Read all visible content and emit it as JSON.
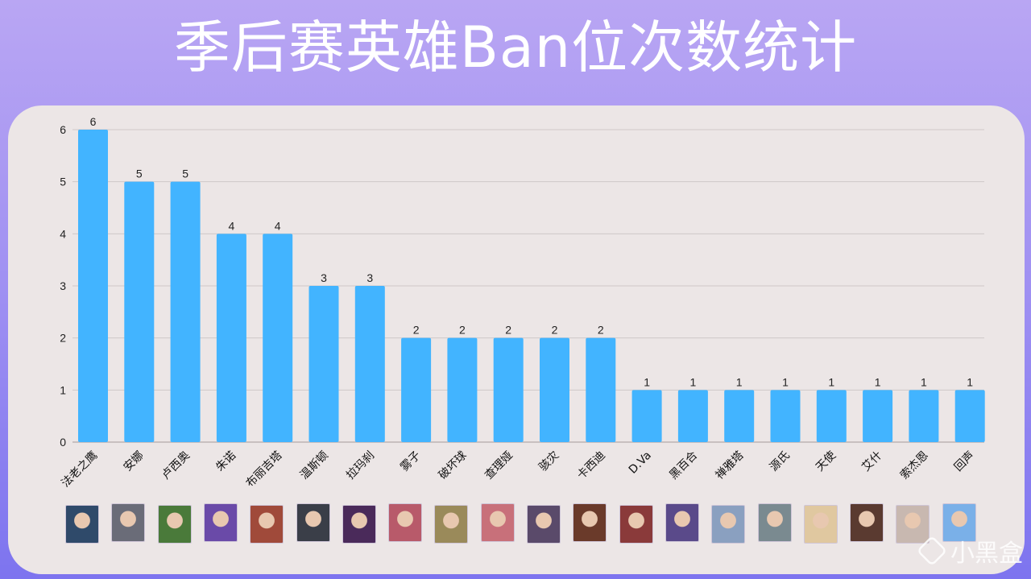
{
  "title": "季后赛英雄Ban位次数统计",
  "watermark": "小黑盒",
  "colors": {
    "bar": "#42b4ff",
    "card": "#ece6e6",
    "grid": "#cfc8c8"
  },
  "chart_data": {
    "type": "bar",
    "title": "季后赛英雄Ban位次数统计",
    "categories": [
      "法老之鹰",
      "安娜",
      "卢西奥",
      "朱诺",
      "布丽吉塔",
      "温斯顿",
      "拉玛刹",
      "雾子",
      "破坏球",
      "查理娅",
      "骇灾",
      "卡西迪",
      "D.Va",
      "黑百合",
      "禅雅塔",
      "源氏",
      "天使",
      "艾什",
      "索杰恩",
      "回声"
    ],
    "values": [
      6,
      5,
      5,
      4,
      4,
      3,
      3,
      2,
      2,
      2,
      2,
      2,
      1,
      1,
      1,
      1,
      1,
      1,
      1,
      1
    ],
    "ylim": [
      0,
      6
    ],
    "yticks": [
      0,
      1,
      2,
      3,
      4,
      5,
      6
    ],
    "grid": true,
    "data_labels": true,
    "xlabel": "",
    "ylabel": ""
  },
  "portraits": [
    {
      "hero": "法老之鹰",
      "color": "#2f4a6a"
    },
    {
      "hero": "安娜",
      "color": "#6a6c78"
    },
    {
      "hero": "卢西奥",
      "color": "#4a7a3a"
    },
    {
      "hero": "朱诺",
      "color": "#6a4aa8"
    },
    {
      "hero": "布丽吉塔",
      "color": "#a04a3a"
    },
    {
      "hero": "温斯顿",
      "color": "#3a3e48"
    },
    {
      "hero": "拉玛刹",
      "color": "#4a2a5a"
    },
    {
      "hero": "雾子",
      "color": "#b85a6a"
    },
    {
      "hero": "破坏球",
      "color": "#9a8a5a"
    },
    {
      "hero": "查理娅",
      "color": "#c8707a"
    },
    {
      "hero": "骇灾",
      "color": "#5a4a6a"
    },
    {
      "hero": "卡西迪",
      "color": "#6a3a2a"
    },
    {
      "hero": "D.Va",
      "color": "#8a3a3a"
    },
    {
      "hero": "黑百合",
      "color": "#5a4a8a"
    },
    {
      "hero": "禅雅塔",
      "color": "#8aa0c0"
    },
    {
      "hero": "源氏",
      "color": "#7a8a90"
    },
    {
      "hero": "天使",
      "color": "#e0c8a0"
    },
    {
      "hero": "艾什",
      "color": "#5a3a30"
    },
    {
      "hero": "索杰恩",
      "color": "#c8b8b0"
    },
    {
      "hero": "回声",
      "color": "#7ab0e8"
    }
  ]
}
